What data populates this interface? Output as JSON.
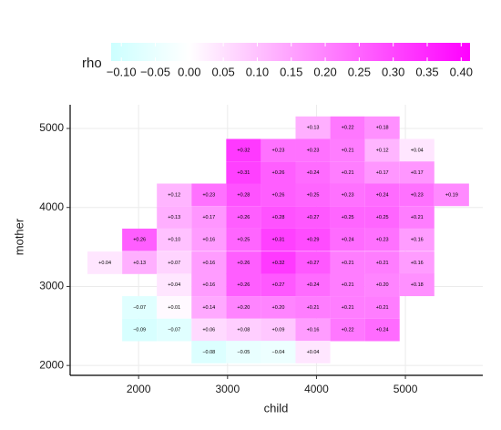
{
  "chart_data": {
    "type": "heatmap",
    "x_label": "child",
    "y_label": "mother",
    "legend_title": "rho",
    "x": [
      1620,
      2010,
      2400,
      2790,
      3180,
      3570,
      3960,
      4350,
      4740,
      5130,
      5520
    ],
    "y": [
      5010,
      4725,
      4440,
      4160,
      3875,
      3590,
      3300,
      3020,
      2735,
      2450,
      2170
    ],
    "values": [
      [
        null,
        null,
        null,
        null,
        null,
        null,
        0.13,
        0.22,
        0.18,
        null,
        null
      ],
      [
        null,
        null,
        null,
        null,
        0.32,
        0.23,
        0.23,
        0.21,
        0.12,
        0.04,
        null
      ],
      [
        null,
        null,
        null,
        null,
        0.31,
        0.26,
        0.24,
        0.21,
        0.17,
        0.17,
        null
      ],
      [
        null,
        null,
        0.12,
        0.23,
        0.28,
        0.26,
        0.25,
        0.23,
        0.24,
        0.23,
        0.19
      ],
      [
        null,
        null,
        0.13,
        0.17,
        0.26,
        0.28,
        0.27,
        0.25,
        0.25,
        0.21,
        null
      ],
      [
        null,
        0.26,
        0.1,
        0.16,
        0.25,
        0.31,
        0.29,
        0.24,
        0.23,
        0.16,
        null
      ],
      [
        0.04,
        0.13,
        0.07,
        0.16,
        0.26,
        0.32,
        0.27,
        0.21,
        0.21,
        0.16,
        null
      ],
      [
        null,
        null,
        0.04,
        0.16,
        0.26,
        0.27,
        0.24,
        0.21,
        0.2,
        0.18,
        null
      ],
      [
        null,
        -0.07,
        0.01,
        0.14,
        0.2,
        0.2,
        0.21,
        0.21,
        0.21,
        null,
        null
      ],
      [
        null,
        -0.09,
        -0.07,
        0.06,
        0.08,
        0.09,
        0.16,
        0.22,
        0.24,
        null,
        null
      ],
      [
        null,
        null,
        null,
        -0.08,
        -0.05,
        -0.04,
        0.04,
        null,
        null,
        null,
        null
      ]
    ],
    "value_labels": [
      [
        null,
        null,
        null,
        null,
        null,
        null,
        "+0.13",
        "+0.22",
        "+0.18",
        null,
        null
      ],
      [
        null,
        null,
        null,
        null,
        "+0.32",
        "+0.23",
        "+0.23",
        "+0.21",
        "+0.12",
        "+0.04",
        null
      ],
      [
        null,
        null,
        null,
        null,
        "+0.31",
        "+0.26",
        "+0.24",
        "+0.21",
        "+0.17",
        "+0.17",
        null
      ],
      [
        null,
        null,
        "+0.12",
        "+0.23",
        "+0.28",
        "+0.26",
        "+0.25",
        "+0.23",
        "+0.24",
        "+0.23",
        "+0.19"
      ],
      [
        null,
        null,
        "+0.13",
        "+0.17",
        "+0.26",
        "+0.28",
        "+0.27",
        "+0.25",
        "+0.25",
        "+0.21",
        null
      ],
      [
        null,
        "+0.26",
        "+0.10",
        "+0.16",
        "+0.25",
        "+0.31",
        "+0.29",
        "+0.24",
        "+0.23",
        "+0.16",
        null
      ],
      [
        "+0.04",
        "+0.13",
        "+0.07",
        "+0.16",
        "+0.26",
        "+0.32",
        "+0.27",
        "+0.21",
        "+0.21",
        "+0.16",
        null
      ],
      [
        null,
        null,
        "+0.04",
        "+0.16",
        "+0.26",
        "+0.27",
        "+0.24",
        "+0.21",
        "+0.20",
        "+0.18",
        null
      ],
      [
        null,
        "−0.07",
        "+0.01",
        "+0.14",
        "+0.20",
        "+0.20",
        "+0.21",
        "+0.21",
        "+0.21",
        null,
        null
      ],
      [
        null,
        "−0.09",
        "−0.07",
        "+0.06",
        "+0.08",
        "+0.09",
        "+0.16",
        "+0.22",
        "+0.24",
        null,
        null
      ],
      [
        null,
        null,
        null,
        "−0.08",
        "−0.05",
        "−0.04",
        "+0.04",
        null,
        null,
        null,
        null
      ]
    ],
    "xlim": [
      1230,
      5870
    ],
    "xticks": [
      2000,
      3000,
      4000,
      5000
    ],
    "ylim": [
      1875,
      5300
    ],
    "yticks": [
      2000,
      3000,
      4000,
      5000
    ],
    "grid": true,
    "clim": [
      -0.115,
      0.413
    ],
    "cticks": [
      {
        "value": -0.1,
        "label": "−0.10"
      },
      {
        "value": -0.05,
        "label": "−0.05"
      },
      {
        "value": 0,
        "label": "0.00"
      },
      {
        "value": 0.05,
        "label": "0.05"
      },
      {
        "value": 0.1,
        "label": "0.10"
      },
      {
        "value": 0.15,
        "label": "0.15"
      },
      {
        "value": 0.2,
        "label": "0.20"
      },
      {
        "value": 0.25,
        "label": "0.25"
      },
      {
        "value": 0.3,
        "label": "0.30"
      },
      {
        "value": 0.35,
        "label": "0.35"
      },
      {
        "value": 0.4,
        "label": "0.40"
      }
    ],
    "colors": {
      "low": "#ccffff",
      "mid": "#ffffff",
      "high": "#ff00ff"
    }
  }
}
